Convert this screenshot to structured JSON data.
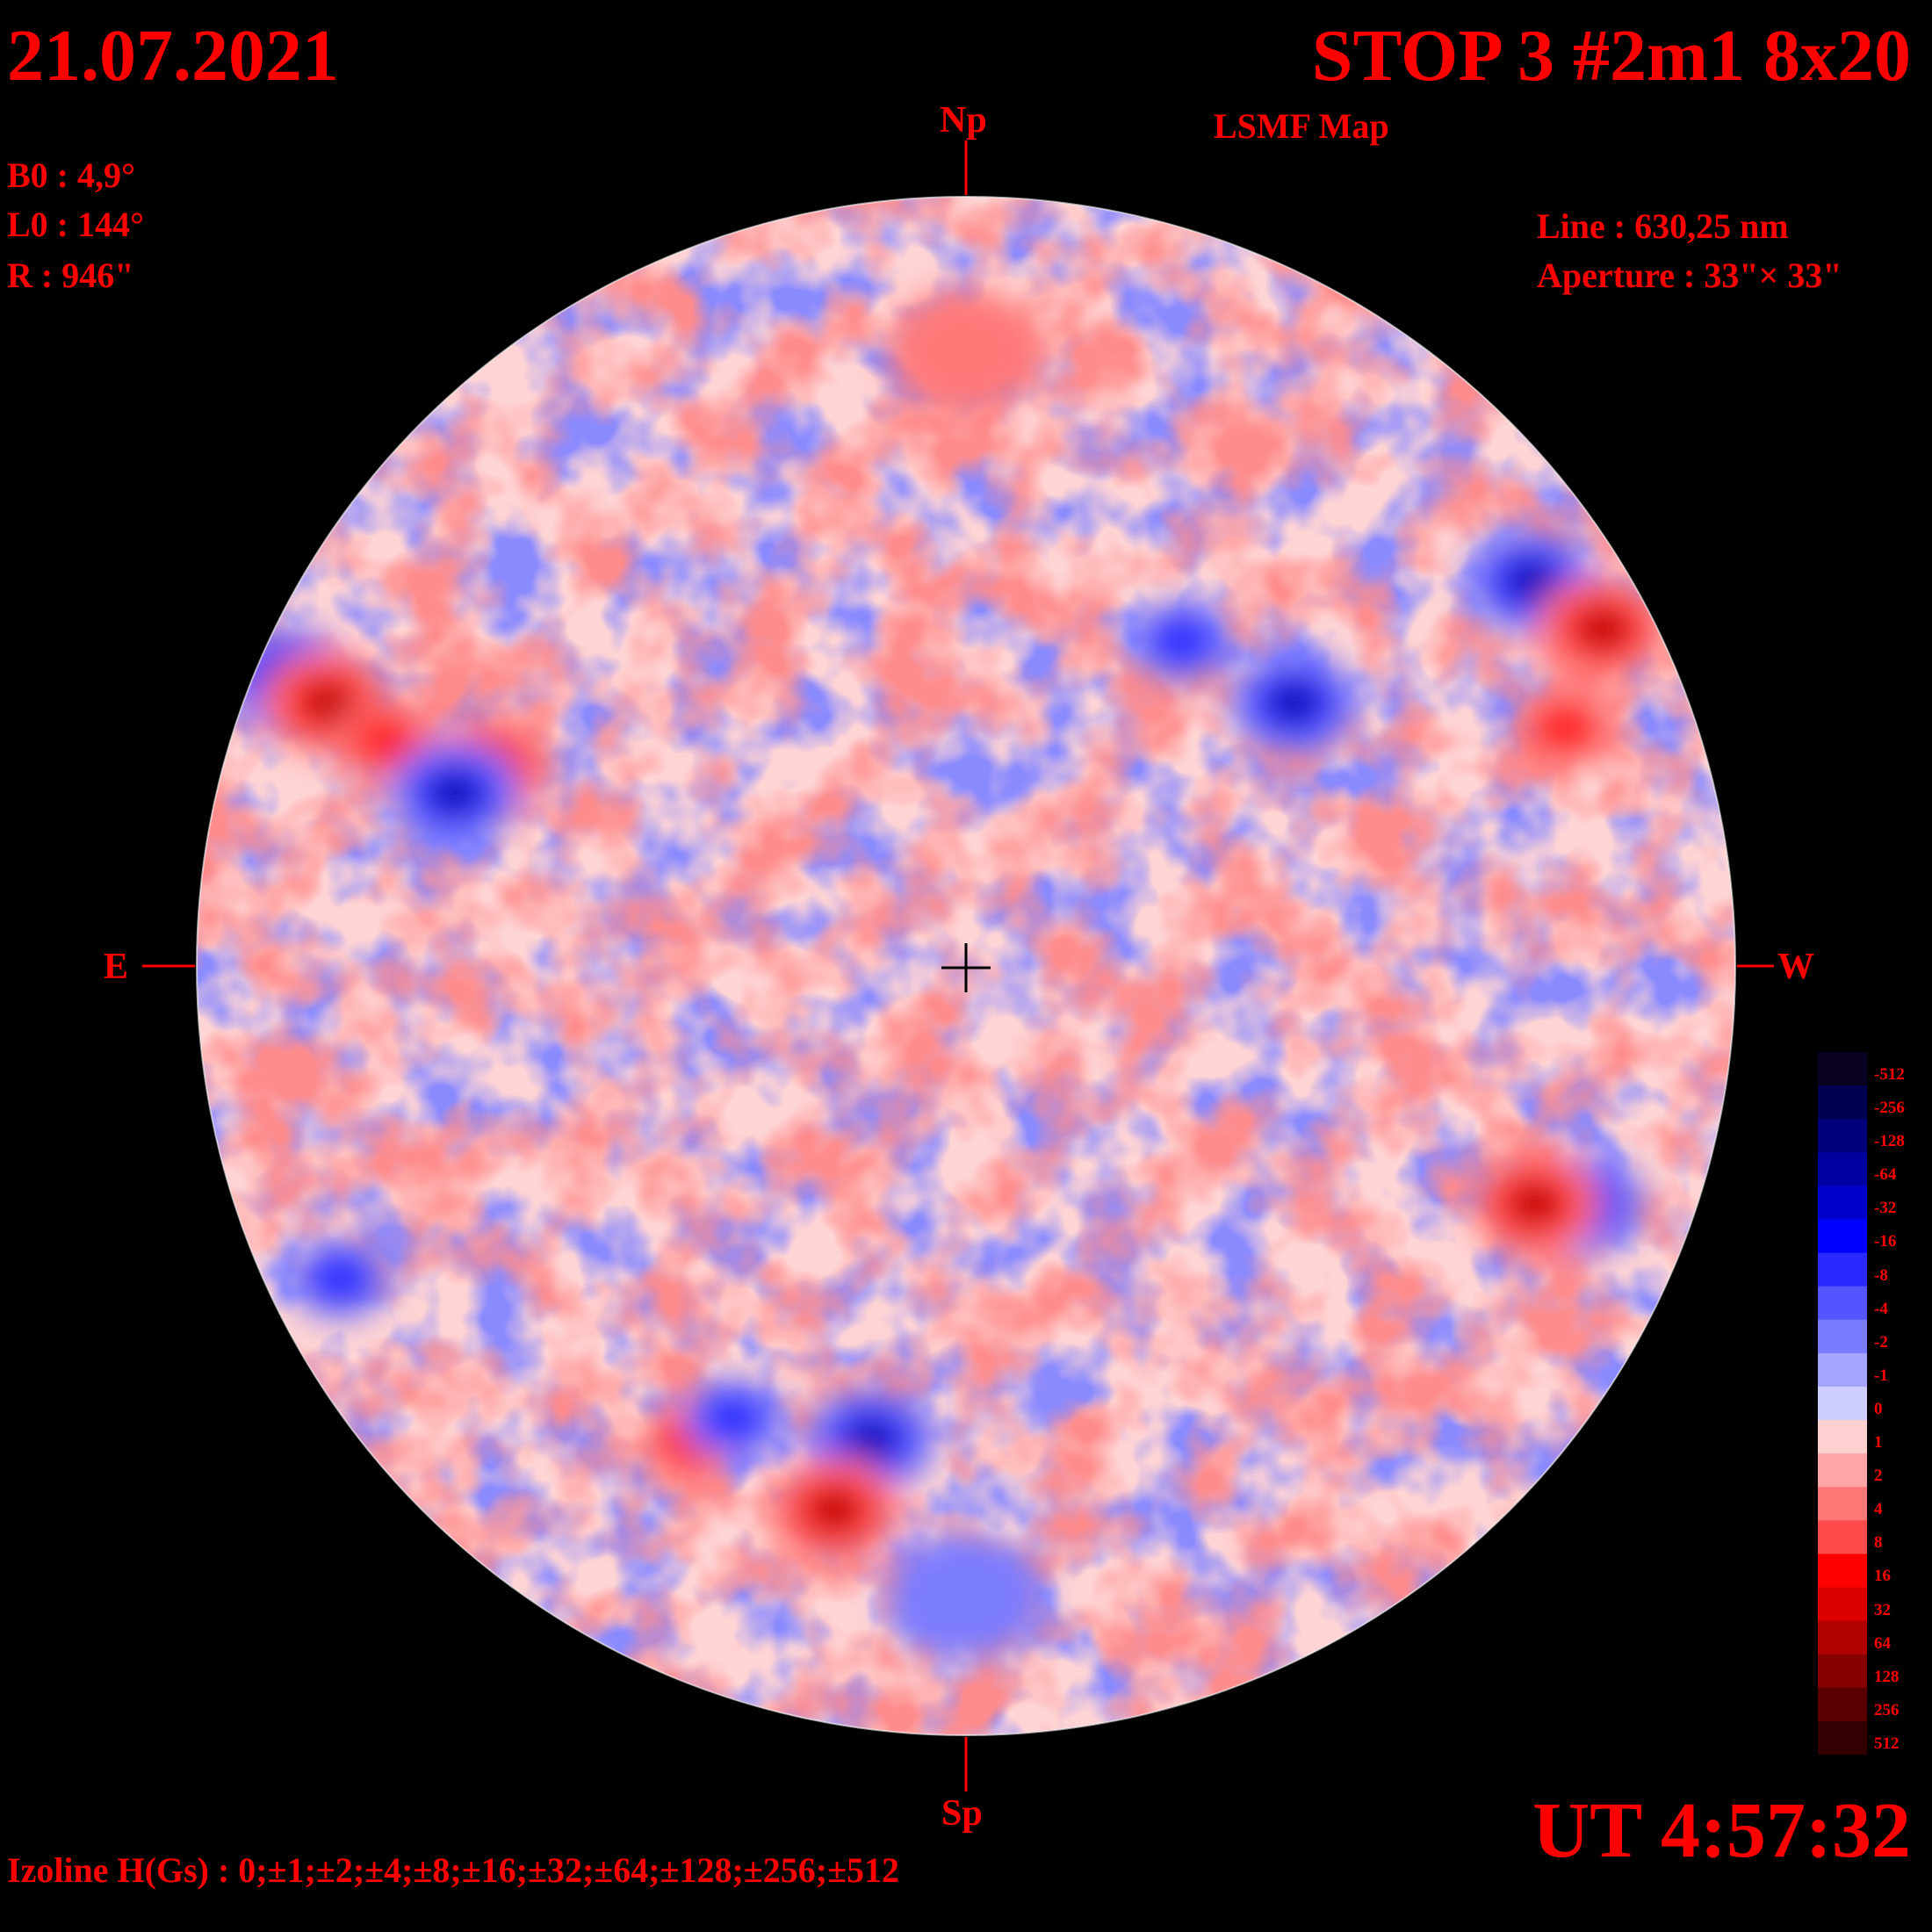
{
  "header": {
    "date": "21.07.2021",
    "title": "STOP 3 #2m1 8x20",
    "subtitle": "LSMF  Map"
  },
  "parameters": {
    "b0": "B0 : 4,9°",
    "l0": "L0 : 144°",
    "r": "R  : 946\""
  },
  "instrument": {
    "line": "Line :  630,25 nm",
    "aperture": "Aperture : 33\"× 33\""
  },
  "compass": {
    "north": "Np",
    "south": "Sp",
    "east": "E",
    "west": "W"
  },
  "time": "UT 4:57:32",
  "izoline": "Izoline H(Gs) : 0;±1;±2;±4;±8;±16;±32;±64;±128;±256;±512",
  "colorbar": {
    "labels": [
      "-512",
      "-256",
      "-128",
      "-64",
      "-32",
      "-16",
      "-8",
      "-4",
      "-2",
      "-1",
      "0",
      "1",
      "2",
      "4",
      "8",
      "16",
      "32",
      "64",
      "128",
      "256",
      "512"
    ],
    "colors": [
      "#0a0020",
      "#000050",
      "#00007a",
      "#0000a0",
      "#0000cc",
      "#0000ff",
      "#2a2aff",
      "#5555ff",
      "#7b7bff",
      "#a5a5ff",
      "#cfcfff",
      "#ffd0d0",
      "#ffa5a5",
      "#ff7878",
      "#ff4b4b",
      "#ff0000",
      "#dd0000",
      "#b00000",
      "#860000",
      "#5a0000",
      "#320000"
    ]
  },
  "map_regions": [
    {
      "lat_deg": 22,
      "lon_deg": -72,
      "polarity": "negative",
      "strength": 3
    },
    {
      "lat_deg": 20,
      "lon_deg": -62,
      "polarity": "positive",
      "strength": 3
    },
    {
      "lat_deg": 17,
      "lon_deg": -52,
      "polarity": "positive",
      "strength": 2
    },
    {
      "lat_deg": 15,
      "lon_deg": -40,
      "polarity": "positive",
      "strength": 3
    },
    {
      "lat_deg": 13,
      "lon_deg": -43,
      "polarity": "negative",
      "strength": 3
    },
    {
      "lat_deg": 25,
      "lon_deg": 18,
      "polarity": "negative",
      "strength": 2
    },
    {
      "lat_deg": 20,
      "lon_deg": 27,
      "polarity": "negative",
      "strength": 3
    },
    {
      "lat_deg": 30,
      "lon_deg": 58,
      "polarity": "negative",
      "strength": 3
    },
    {
      "lat_deg": 26,
      "lon_deg": 67,
      "polarity": "positive",
      "strength": 3
    },
    {
      "lat_deg": 18,
      "lon_deg": 55,
      "polarity": "positive",
      "strength": 2
    },
    {
      "lat_deg": -18,
      "lon_deg": 57,
      "polarity": "negative",
      "strength": 3
    },
    {
      "lat_deg": -18,
      "lon_deg": 51,
      "polarity": "positive",
      "strength": 3
    },
    {
      "lat_deg": -38,
      "lon_deg": -9,
      "polarity": "negative",
      "strength": 3
    },
    {
      "lat_deg": -45,
      "lon_deg": -14,
      "polarity": "positive",
      "strength": 3
    },
    {
      "lat_deg": -38,
      "lon_deg": -27,
      "polarity": "positive",
      "strength": 2
    },
    {
      "lat_deg": -36,
      "lon_deg": -22,
      "polarity": "negative",
      "strength": 2
    },
    {
      "lat_deg": -24,
      "lon_deg": -63,
      "polarity": "negative",
      "strength": 2
    },
    {
      "lat_deg": 53,
      "lon_deg": 0,
      "polarity": "positive",
      "strength": 1
    },
    {
      "lat_deg": -55,
      "lon_deg": 0,
      "polarity": "negative",
      "strength": 1
    }
  ]
}
